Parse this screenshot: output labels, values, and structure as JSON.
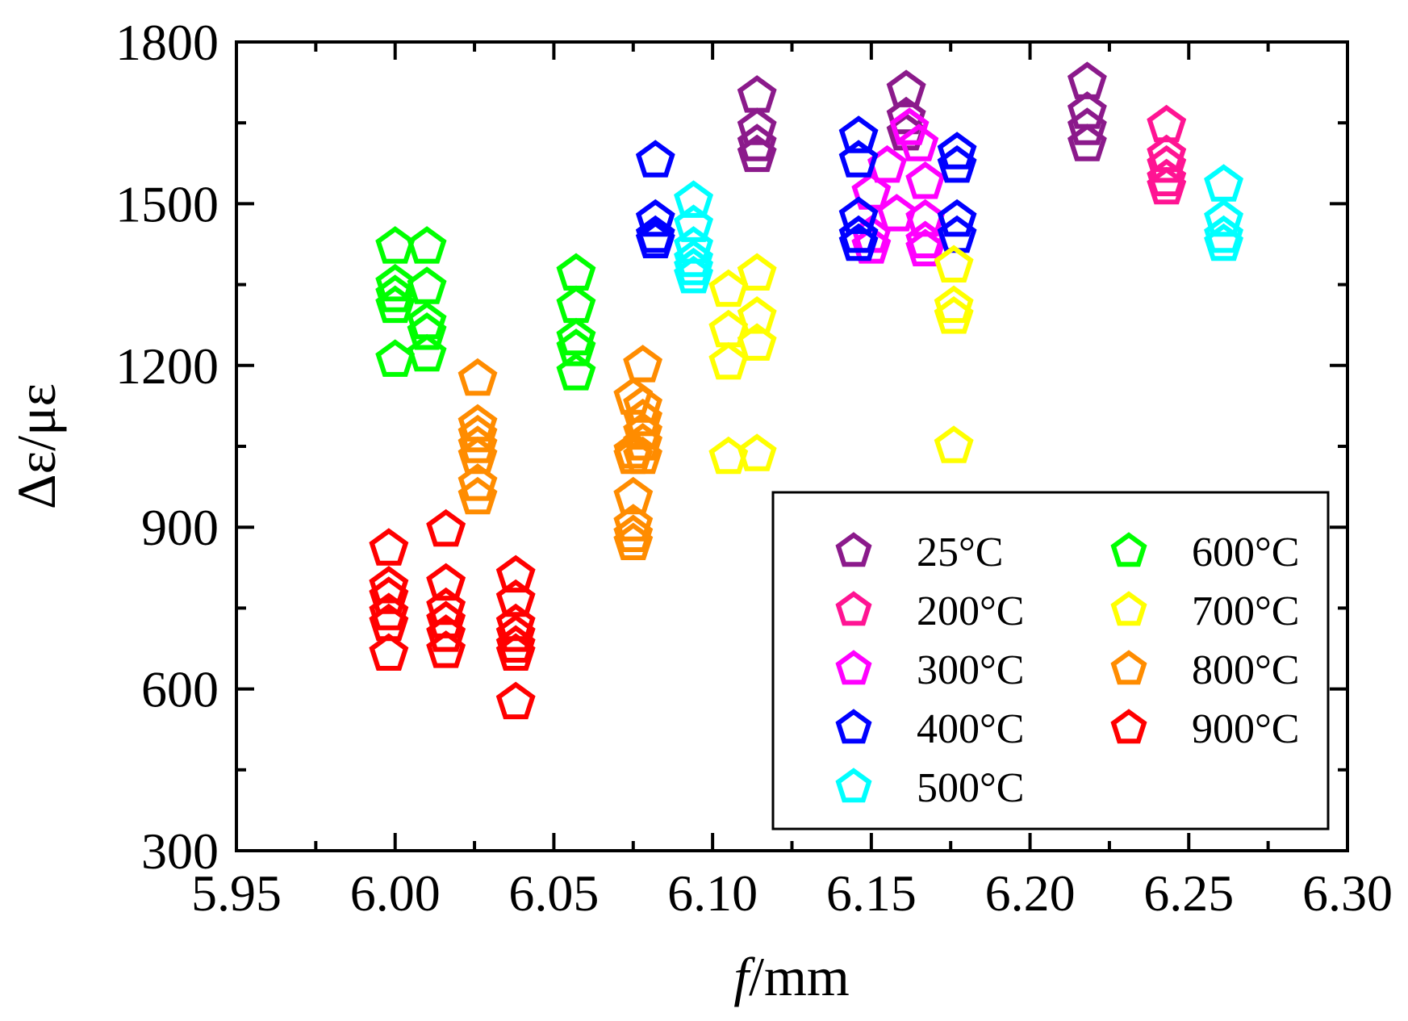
{
  "chart_data": {
    "type": "scatter",
    "xlabel_italic": "f",
    "xlabel_rest": "/mm",
    "ylabel": "Δε/με",
    "xlim": [
      5.95,
      6.3
    ],
    "ylim": [
      300,
      1800
    ],
    "xticks": [
      5.95,
      6.0,
      6.05,
      6.1,
      6.15,
      6.2,
      6.25,
      6.3
    ],
    "xtick_labels": [
      "5.95",
      "6.00",
      "6.05",
      "6.10",
      "6.15",
      "6.20",
      "6.25",
      "6.30"
    ],
    "yticks": [
      300,
      600,
      900,
      1200,
      1500,
      1800
    ],
    "ytick_labels": [
      "300",
      "600",
      "900",
      "1200",
      "1500",
      "1800"
    ],
    "marker": "open-pentagon",
    "legend_position": "bottom-right",
    "series": [
      {
        "name": "25°C",
        "color": "#8B1A8B",
        "points": [
          [
            6.114,
            1700
          ],
          [
            6.114,
            1640
          ],
          [
            6.114,
            1610
          ],
          [
            6.114,
            1590
          ],
          [
            6.161,
            1710
          ],
          [
            6.161,
            1660
          ],
          [
            6.161,
            1630
          ],
          [
            6.218,
            1725
          ],
          [
            6.218,
            1670
          ],
          [
            6.218,
            1640
          ],
          [
            6.218,
            1610
          ]
        ]
      },
      {
        "name": "200°C",
        "color": "#FF1493",
        "points": [
          [
            6.243,
            1645
          ],
          [
            6.243,
            1590
          ],
          [
            6.243,
            1570
          ],
          [
            6.243,
            1545
          ],
          [
            6.243,
            1530
          ]
        ]
      },
      {
        "name": "300°C",
        "color": "#FF00FF",
        "points": [
          [
            6.15,
            1520
          ],
          [
            6.15,
            1440
          ],
          [
            6.15,
            1420
          ],
          [
            6.155,
            1570
          ],
          [
            6.158,
            1480
          ],
          [
            6.162,
            1640
          ],
          [
            6.165,
            1610
          ],
          [
            6.167,
            1540
          ],
          [
            6.167,
            1470
          ],
          [
            6.167,
            1430
          ],
          [
            6.167,
            1415
          ]
        ]
      },
      {
        "name": "400°C",
        "color": "#0000FF",
        "points": [
          [
            6.082,
            1580
          ],
          [
            6.082,
            1470
          ],
          [
            6.082,
            1440
          ],
          [
            6.082,
            1430
          ],
          [
            6.146,
            1625
          ],
          [
            6.146,
            1580
          ],
          [
            6.146,
            1475
          ],
          [
            6.146,
            1440
          ],
          [
            6.146,
            1425
          ],
          [
            6.177,
            1595
          ],
          [
            6.177,
            1570
          ],
          [
            6.177,
            1470
          ],
          [
            6.177,
            1440
          ]
        ]
      },
      {
        "name": "500°C",
        "color": "#00FFFF",
        "points": [
          [
            6.094,
            1505
          ],
          [
            6.094,
            1460
          ],
          [
            6.094,
            1420
          ],
          [
            6.094,
            1395
          ],
          [
            6.094,
            1380
          ],
          [
            6.094,
            1365
          ],
          [
            6.261,
            1535
          ],
          [
            6.261,
            1470
          ],
          [
            6.261,
            1440
          ],
          [
            6.261,
            1425
          ]
        ]
      },
      {
        "name": "600°C",
        "color": "#00FF00",
        "points": [
          [
            6.0,
            1420
          ],
          [
            6.0,
            1350
          ],
          [
            6.0,
            1330
          ],
          [
            6.0,
            1310
          ],
          [
            6.0,
            1210
          ],
          [
            6.01,
            1420
          ],
          [
            6.01,
            1345
          ],
          [
            6.01,
            1280
          ],
          [
            6.01,
            1260
          ],
          [
            6.01,
            1220
          ],
          [
            6.057,
            1370
          ],
          [
            6.057,
            1310
          ],
          [
            6.057,
            1250
          ],
          [
            6.057,
            1230
          ],
          [
            6.057,
            1185
          ]
        ]
      },
      {
        "name": "700°C",
        "color": "#FFFF00",
        "points": [
          [
            6.105,
            1340
          ],
          [
            6.105,
            1265
          ],
          [
            6.105,
            1205
          ],
          [
            6.105,
            1030
          ],
          [
            6.114,
            1370
          ],
          [
            6.114,
            1290
          ],
          [
            6.114,
            1240
          ],
          [
            6.114,
            1035
          ],
          [
            6.176,
            1385
          ],
          [
            6.176,
            1310
          ],
          [
            6.176,
            1290
          ],
          [
            6.176,
            1050
          ]
        ]
      },
      {
        "name": "800°C",
        "color": "#FF8C00",
        "points": [
          [
            6.026,
            1175
          ],
          [
            6.026,
            1090
          ],
          [
            6.026,
            1070
          ],
          [
            6.026,
            1050
          ],
          [
            6.026,
            1030
          ],
          [
            6.026,
            980
          ],
          [
            6.026,
            955
          ],
          [
            6.075,
            1140
          ],
          [
            6.075,
            1040
          ],
          [
            6.075,
            1030
          ],
          [
            6.075,
            955
          ],
          [
            6.075,
            905
          ],
          [
            6.075,
            885
          ],
          [
            6.075,
            870
          ],
          [
            6.078,
            1200
          ],
          [
            6.078,
            1125
          ],
          [
            6.078,
            1100
          ],
          [
            6.078,
            1075
          ],
          [
            6.078,
            1055
          ],
          [
            6.078,
            1030
          ]
        ]
      },
      {
        "name": "900°C",
        "color": "#FF0000",
        "points": [
          [
            5.998,
            860
          ],
          [
            5.998,
            790
          ],
          [
            5.998,
            770
          ],
          [
            5.998,
            740
          ],
          [
            5.998,
            720
          ],
          [
            5.998,
            665
          ],
          [
            6.016,
            895
          ],
          [
            6.016,
            795
          ],
          [
            6.016,
            750
          ],
          [
            6.016,
            725
          ],
          [
            6.016,
            700
          ],
          [
            6.016,
            670
          ],
          [
            6.038,
            810
          ],
          [
            6.038,
            765
          ],
          [
            6.038,
            720
          ],
          [
            6.038,
            700
          ],
          [
            6.038,
            680
          ],
          [
            6.038,
            665
          ],
          [
            6.038,
            575
          ]
        ]
      }
    ]
  }
}
